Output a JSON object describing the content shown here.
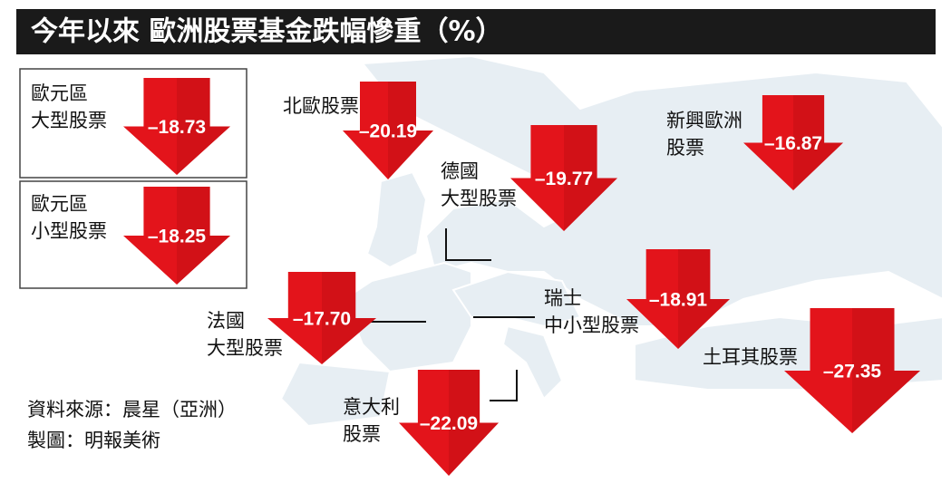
{
  "title": "今年以來 歐洲股票基金跌幅慘重（%）",
  "items": [
    {
      "label": [
        "歐元區",
        "大型股票"
      ],
      "value": "–18.73"
    },
    {
      "label": [
        "歐元區",
        "小型股票"
      ],
      "value": "–18.25"
    },
    {
      "label": [
        "北歐股票"
      ],
      "value": "–20.19"
    },
    {
      "label": [
        "德國",
        "大型股票"
      ],
      "value": "–19.77"
    },
    {
      "label": [
        "新興歐洲",
        "股票"
      ],
      "value": "–16.87"
    },
    {
      "label": [
        "瑞士",
        "中小型股票"
      ],
      "value": "–18.91"
    },
    {
      "label": [
        "法國",
        "大型股票"
      ],
      "value": "–17.70"
    },
    {
      "label": [
        "土耳其股票"
      ],
      "value": "–27.35"
    },
    {
      "label": [
        "意大利",
        "股票"
      ],
      "value": "–22.09"
    }
  ],
  "source": "資料來源：晨星（亞洲）",
  "credit": "製圖：明報美術"
}
